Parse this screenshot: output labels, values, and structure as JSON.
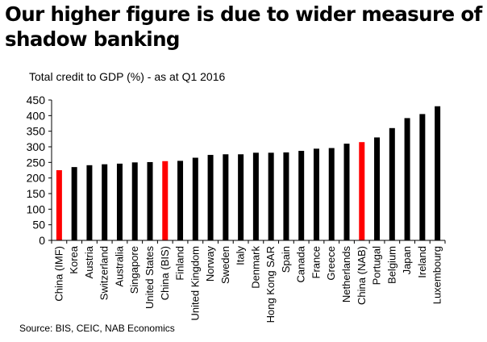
{
  "header": {
    "title": "Our higher figure is due to wider measure of shadow banking",
    "subtitle": "Total credit to GDP (%) - as at Q1 2016"
  },
  "footer": {
    "source": "Source: BIS, CEIC, NAB Economics"
  },
  "colors": {
    "default_bar": "#000000",
    "highlight_bar": "#ff0000",
    "axis": "#000000"
  },
  "chart_data": {
    "type": "bar",
    "title": "Our higher figure is due to wider measure of shadow banking",
    "subtitle": "Total credit to GDP (%) - as at Q1 2016",
    "xlabel": "",
    "ylabel": "",
    "ylim": [
      0,
      450
    ],
    "yticks": [
      0,
      50,
      100,
      150,
      200,
      250,
      300,
      350,
      400,
      450
    ],
    "grid": false,
    "legend": "none",
    "categories": [
      "China (IMF)",
      "Korea",
      "Austria",
      "Switzerland",
      "Australia",
      "Singapore",
      "United States",
      "China (BIS)",
      "Finland",
      "United Kingdom",
      "Norway",
      "Sweden",
      "Italy",
      "Denmark",
      "Hong Kong SAR",
      "Spain",
      "Canada",
      "France",
      "Greece",
      "Netherlands",
      "China (NAB)",
      "Portugal",
      "Belgium",
      "Japan",
      "Ireland",
      "Luxembourg"
    ],
    "values": [
      225,
      235,
      241,
      244,
      246,
      250,
      251,
      254,
      255,
      265,
      274,
      276,
      276,
      281,
      281,
      282,
      287,
      294,
      296,
      310,
      315,
      330,
      360,
      392,
      405,
      430
    ],
    "highlighted": [
      "China (IMF)",
      "China (BIS)",
      "China (NAB)"
    ]
  }
}
